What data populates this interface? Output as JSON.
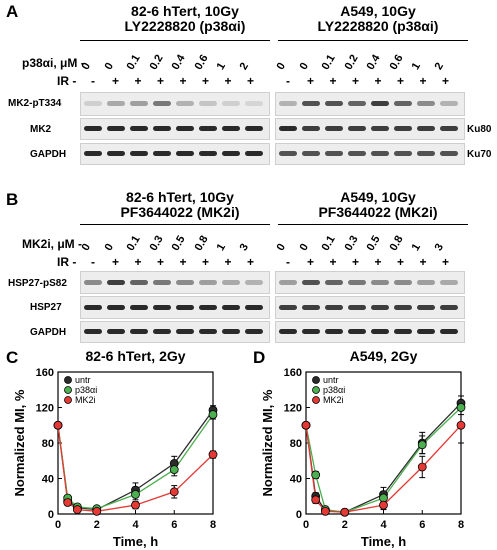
{
  "panels": {
    "A": {
      "letter": "A",
      "left": {
        "title1": "82-6 hTert, 10Gy",
        "title2": "LY2228820 (p38αi)"
      },
      "right": {
        "title1": "A549, 10Gy",
        "title2": "LY2228820 (p38αi)"
      },
      "conc_label": "p38αi, μM -",
      "ir_label": "IR -",
      "concentrations": [
        "0",
        "0",
        "0.1",
        "0.2",
        "0.4",
        "0.6",
        "1",
        "2"
      ],
      "ir": [
        "-",
        "+",
        "+",
        "+",
        "+",
        "+",
        "+",
        "+"
      ],
      "rows": [
        "MK2-pT334",
        "MK2",
        "GAPDH"
      ],
      "right_labels": [
        "Ku80",
        "Ku70"
      ]
    },
    "B": {
      "letter": "B",
      "left": {
        "title1": "82-6 hTert, 10Gy",
        "title2": "PF3644022 (MK2i)"
      },
      "right": {
        "title1": "A549, 10Gy",
        "title2": "PF3644022 (MK2i)"
      },
      "conc_label": "MK2i, μM -",
      "ir_label": "IR -",
      "concentrations": [
        "0",
        "0",
        "0.1",
        "0.3",
        "0.5",
        "0.8",
        "1",
        "3"
      ],
      "ir": [
        "-",
        "+",
        "+",
        "+",
        "+",
        "+",
        "+",
        "+"
      ],
      "rows": [
        "HSP27-pS82",
        "HSP27",
        "GAPDH"
      ]
    },
    "C": {
      "letter": "C"
    },
    "D": {
      "letter": "D"
    }
  },
  "chart_data": [
    {
      "type": "line",
      "title": "82-6 hTert, 2Gy",
      "xlabel": "Time, h",
      "ylabel": "Normalized MI, %",
      "xlim": [
        0,
        8
      ],
      "ylim": [
        0,
        160
      ],
      "xticks": [
        0,
        2,
        4,
        6,
        8
      ],
      "yticks": [
        0,
        40,
        80,
        120,
        160
      ],
      "legend_position": "top-left",
      "series": [
        {
          "name": "untr",
          "color": "#2b2b2b",
          "x": [
            0,
            0.5,
            1,
            2,
            4,
            6,
            8
          ],
          "y": [
            100,
            15,
            7,
            5,
            27,
            57,
            117
          ],
          "err": [
            0,
            3,
            2,
            2,
            8,
            8,
            5
          ]
        },
        {
          "name": "p38αi",
          "color": "#4caf50",
          "x": [
            0,
            0.5,
            1,
            2,
            4,
            6,
            8
          ],
          "y": [
            100,
            18,
            8,
            6,
            22,
            50,
            112
          ],
          "err": [
            0,
            3,
            2,
            2,
            6,
            7,
            5
          ]
        },
        {
          "name": "MK2i",
          "color": "#e53935",
          "x": [
            0,
            0.5,
            1,
            2,
            4,
            6,
            8
          ],
          "y": [
            100,
            13,
            5,
            3,
            10,
            25,
            67
          ],
          "err": [
            0,
            3,
            2,
            2,
            4,
            7,
            4
          ]
        }
      ]
    },
    {
      "type": "line",
      "title": "A549, 2Gy",
      "xlabel": "Time, h",
      "ylabel": "Normalized MI, %",
      "xlim": [
        0,
        8
      ],
      "ylim": [
        0,
        160
      ],
      "xticks": [
        0,
        2,
        4,
        6,
        8
      ],
      "yticks": [
        0,
        40,
        80,
        120,
        160
      ],
      "legend_position": "top-left",
      "series": [
        {
          "name": "untr",
          "color": "#2b2b2b",
          "x": [
            0,
            0.5,
            1,
            2,
            4,
            6,
            8
          ],
          "y": [
            100,
            20,
            4,
            2,
            22,
            80,
            125
          ],
          "err": [
            0,
            4,
            2,
            2,
            8,
            12,
            8
          ]
        },
        {
          "name": "p38αi",
          "color": "#4caf50",
          "x": [
            0,
            0.5,
            1,
            2,
            4,
            6,
            8
          ],
          "y": [
            100,
            44,
            5,
            2,
            18,
            78,
            120
          ],
          "err": [
            0,
            4,
            2,
            2,
            7,
            10,
            8
          ]
        },
        {
          "name": "MK2i",
          "color": "#e53935",
          "x": [
            0,
            0.5,
            1,
            2,
            4,
            6,
            8
          ],
          "y": [
            100,
            16,
            3,
            2,
            10,
            53,
            100
          ],
          "err": [
            0,
            4,
            2,
            2,
            5,
            12,
            20
          ]
        }
      ]
    }
  ]
}
